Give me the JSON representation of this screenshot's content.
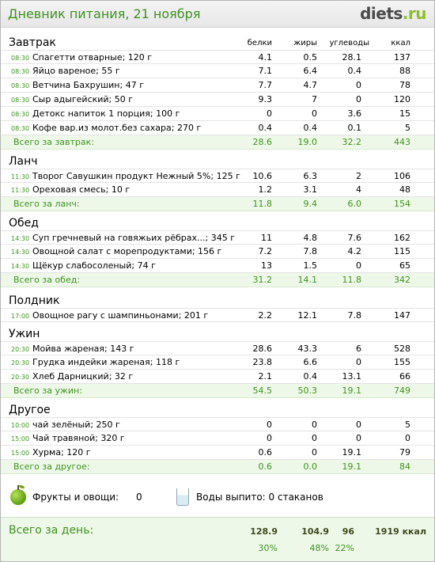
{
  "header": {
    "title": "Дневник питания, 21 ноября",
    "logo_main": "diets",
    "logo_suffix": ".ru"
  },
  "columns": {
    "protein": "белки",
    "fat": "жиры",
    "carbs": "углеводы",
    "kcal": "ккал"
  },
  "meals": [
    {
      "name": "Завтрак",
      "items": [
        {
          "time": "08:30",
          "name": "Спагетти отварные; 120 г",
          "p": "4.1",
          "f": "0.5",
          "c": "28.1",
          "k": "137"
        },
        {
          "time": "08:30",
          "name": "Яйцо вареное; 55 г",
          "p": "7.1",
          "f": "6.4",
          "c": "0.4",
          "k": "88"
        },
        {
          "time": "08:30",
          "name": "Ветчина Бахрушин; 47 г",
          "p": "7.7",
          "f": "4.7",
          "c": "0",
          "k": "78"
        },
        {
          "time": "08:30",
          "name": "Сыр адыгейский; 50 г",
          "p": "9.3",
          "f": "7",
          "c": "0",
          "k": "120"
        },
        {
          "time": "08:30",
          "name": "Детокс напиток 1 порция; 100 г",
          "p": "0",
          "f": "0",
          "c": "3.6",
          "k": "15"
        },
        {
          "time": "08:30",
          "name": "Кофе вар.из молот.без сахара; 270 г",
          "p": "0.4",
          "f": "0.4",
          "c": "0.1",
          "k": "5"
        }
      ],
      "total": {
        "label": "Всего за завтрак:",
        "p": "28.6",
        "f": "19.0",
        "c": "32.2",
        "k": "443"
      }
    },
    {
      "name": "Ланч",
      "items": [
        {
          "time": "11:30",
          "name": "Творог Савушкин продукт Нежный 5%; 125 г",
          "p": "10.6",
          "f": "6.3",
          "c": "2",
          "k": "106"
        },
        {
          "time": "11:30",
          "name": "Ореховая смесь; 10 г",
          "p": "1.2",
          "f": "3.1",
          "c": "4",
          "k": "48"
        }
      ],
      "total": {
        "label": "Всего за ланч:",
        "p": "11.8",
        "f": "9.4",
        "c": "6.0",
        "k": "154"
      }
    },
    {
      "name": "Обед",
      "items": [
        {
          "time": "14:30",
          "name": "Суп гречневый на говяжьих рёбрах...; 345 г",
          "p": "11",
          "f": "4.8",
          "c": "7.6",
          "k": "162"
        },
        {
          "time": "14:30",
          "name": "Овощной салат с морепродуктами; 156 г",
          "p": "7.2",
          "f": "7.8",
          "c": "4.2",
          "k": "115"
        },
        {
          "time": "14:30",
          "name": "Щёкур слабосоленый; 74 г",
          "p": "13",
          "f": "1.5",
          "c": "0",
          "k": "65"
        }
      ],
      "total": {
        "label": "Всего за обед:",
        "p": "31.2",
        "f": "14.1",
        "c": "11.8",
        "k": "342"
      }
    },
    {
      "name": "Полдник",
      "items": [
        {
          "time": "17:00",
          "name": "Овощное рагу с шампиньонами; 201 г",
          "p": "2.2",
          "f": "12.1",
          "c": "7.8",
          "k": "147"
        }
      ],
      "total": null
    },
    {
      "name": "Ужин",
      "items": [
        {
          "time": "20:30",
          "name": "Мойва жареная; 143 г",
          "p": "28.6",
          "f": "43.3",
          "c": "6",
          "k": "528"
        },
        {
          "time": "20:30",
          "name": "Грудка индейки жареная; 118 г",
          "p": "23.8",
          "f": "6.6",
          "c": "0",
          "k": "155"
        },
        {
          "time": "20:30",
          "name": "Хлеб Дарницкий; 32 г",
          "p": "2.1",
          "f": "0.4",
          "c": "13.1",
          "k": "66"
        }
      ],
      "total": {
        "label": "Всего за ужин:",
        "p": "54.5",
        "f": "50.3",
        "c": "19.1",
        "k": "749"
      }
    },
    {
      "name": "Другое",
      "items": [
        {
          "time": "10:00",
          "name": "чай зелёный; 250 г",
          "p": "0",
          "f": "0",
          "c": "0",
          "k": "5"
        },
        {
          "time": "15:00",
          "name": "Чай травяной; 320 г",
          "p": "0",
          "f": "0",
          "c": "0",
          "k": "0"
        },
        {
          "time": "15:00",
          "name": "Хурма; 120 г",
          "p": "0.6",
          "f": "0",
          "c": "19.1",
          "k": "79"
        }
      ],
      "total": {
        "label": "Всего за другое:",
        "p": "0.6",
        "f": "0.0",
        "c": "19.1",
        "k": "84"
      }
    }
  ],
  "extras": {
    "fruits_label": "Фрукты и овощи:",
    "fruits_value": "0",
    "water_label": "Воды выпито: 0 стаканов",
    "fruit_icon": "apple-icon",
    "water_icon": "glass-icon"
  },
  "day_total": {
    "label": "Всего за день:",
    "p": "128.9",
    "f": "104.9",
    "c": "96",
    "k": "1919 ккал",
    "p_pct": "30%",
    "f_pct": "48%",
    "c_pct": "22%"
  },
  "colors": {
    "accent_green": "#3e9220",
    "total_bg": "#eef8e8"
  }
}
